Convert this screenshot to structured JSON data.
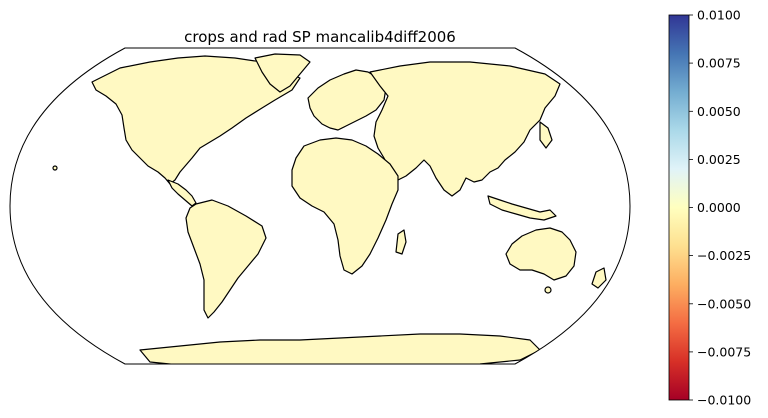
{
  "map": {
    "title": "crops and rad SP mancalib4diff2006",
    "projection": "Robinson",
    "land_color": "#fff9c2"
  },
  "colorbar": {
    "colormap": "RdYlBu",
    "vmin": -0.01,
    "vmax": 0.01,
    "ticks": [
      "0.0100",
      "0.0075",
      "0.0050",
      "0.0025",
      "0.0000",
      "−0.0025",
      "−0.0050",
      "−0.0075",
      "−0.0100"
    ],
    "colors": [
      "#a50026",
      "#d73027",
      "#f46d43",
      "#fdae61",
      "#fee090",
      "#ffffbf",
      "#e0f3f8",
      "#abd9e9",
      "#74add1",
      "#4575b4",
      "#313695"
    ]
  }
}
